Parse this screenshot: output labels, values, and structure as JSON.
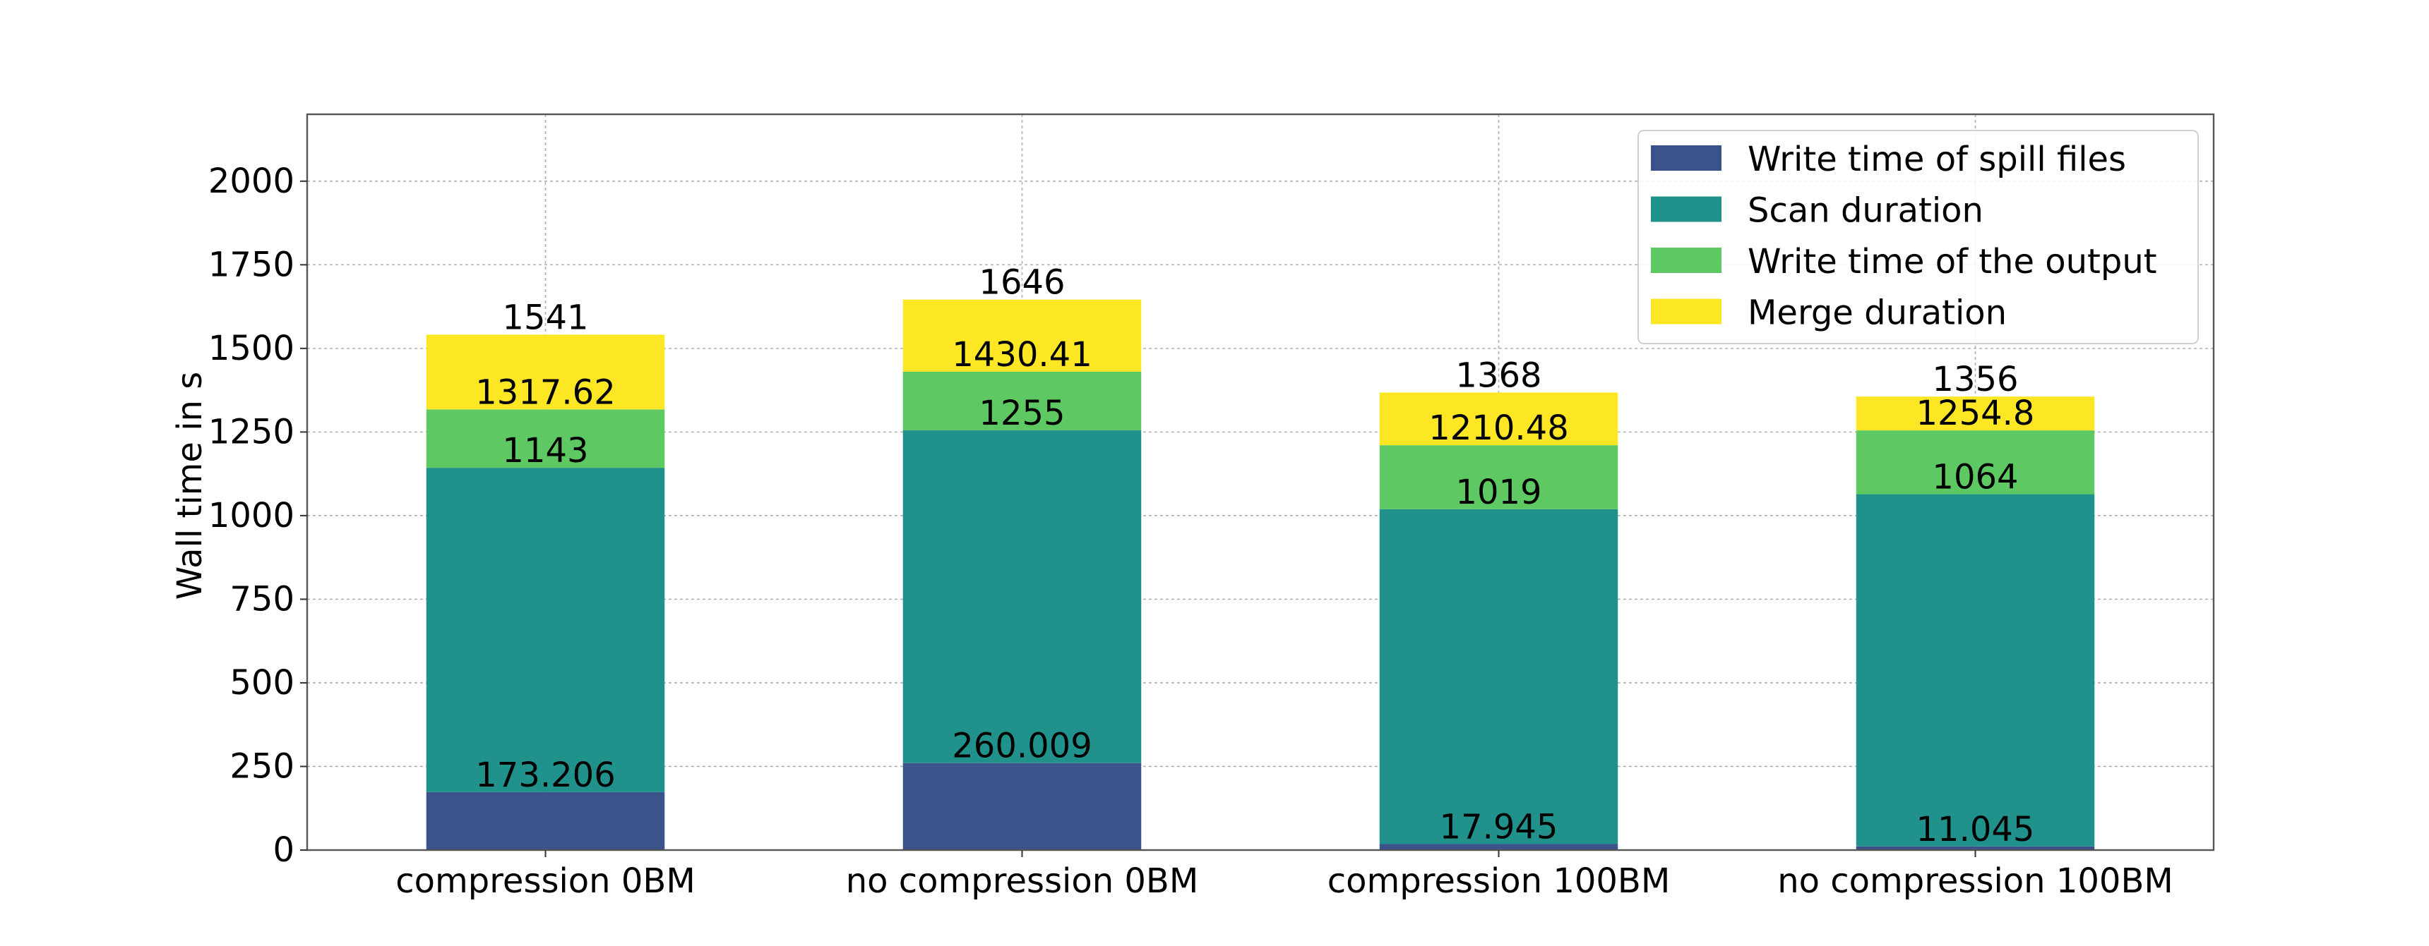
{
  "chart_data": {
    "type": "bar",
    "stacked": true,
    "title": "",
    "xlabel": "",
    "ylabel": "Wall time in s",
    "ylim": [
      0,
      2200
    ],
    "yticks": [
      0,
      250,
      500,
      750,
      1000,
      1250,
      1500,
      1750,
      2000
    ],
    "grid": true,
    "legend_position": "top-right",
    "categories": [
      "compression 0BM",
      "no compression 0BM",
      "compression 100BM",
      "no compression 100BM"
    ],
    "series": [
      {
        "name": "Write time of spill files",
        "color": "#3b528b",
        "values": [
          173.206,
          260.009,
          17.945,
          11.045
        ]
      },
      {
        "name": "Scan duration",
        "color": "#21918c",
        "values": [
          969.794,
          994.991,
          1001.055,
          1052.955
        ]
      },
      {
        "name": "Write time of the output",
        "color": "#5ec962",
        "values": [
          174.62,
          175.41,
          191.48,
          190.8
        ]
      },
      {
        "name": "Merge duration",
        "color": "#fde725",
        "values": [
          223.38,
          215.59,
          157.52,
          101.2
        ]
      }
    ],
    "bar_labels": [
      [
        "173.206",
        "1143",
        "1317.62",
        "1541"
      ],
      [
        "260.009",
        "1255",
        "1430.41",
        "1646"
      ],
      [
        "17.945",
        "1019",
        "1210.48",
        "1368"
      ],
      [
        "11.045",
        "1064",
        "1254.8",
        "1356"
      ]
    ]
  }
}
